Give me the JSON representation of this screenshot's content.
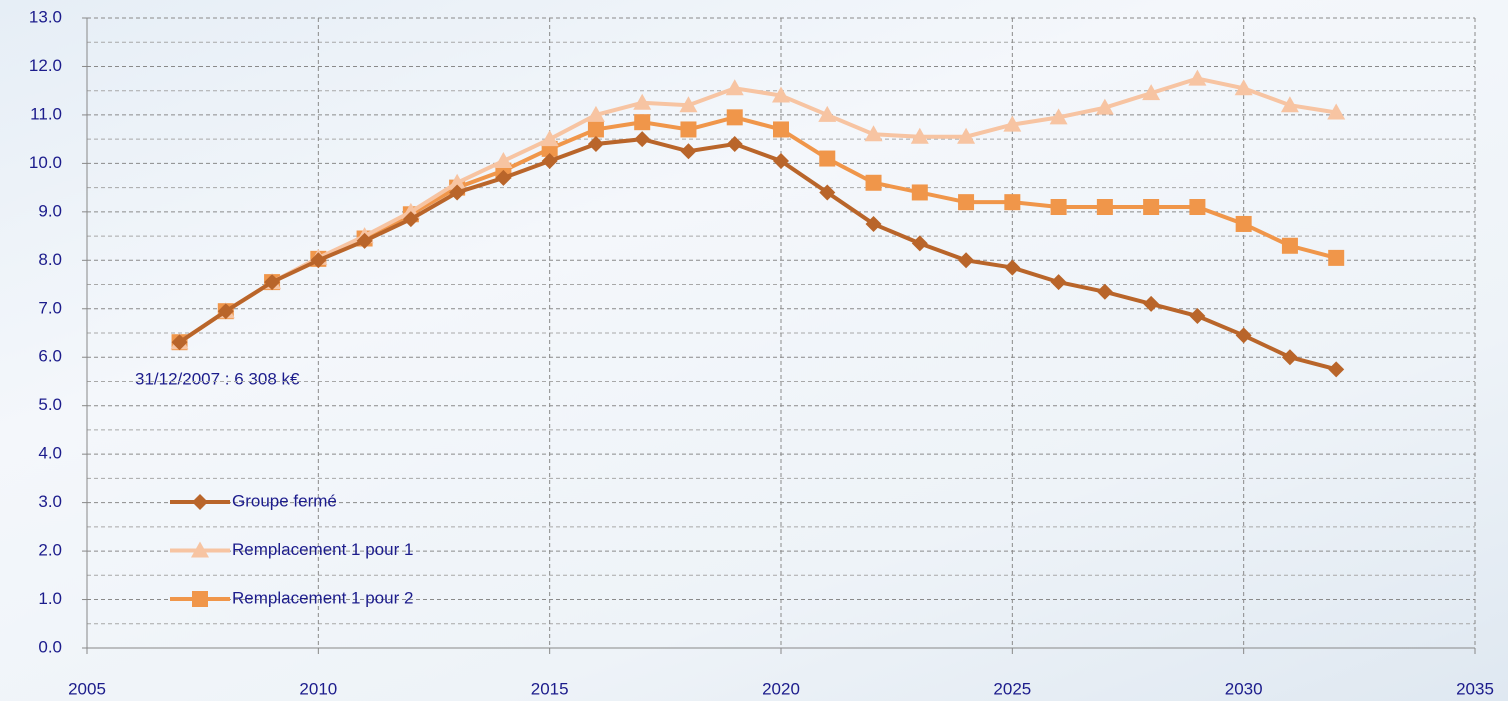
{
  "chart_data": {
    "type": "line",
    "annotation": "31/12/2007 : 6 308 k€",
    "x": [
      2007,
      2008,
      2009,
      2010,
      2011,
      2012,
      2013,
      2014,
      2015,
      2016,
      2017,
      2018,
      2019,
      2020,
      2021,
      2022,
      2023,
      2024,
      2025,
      2026,
      2027,
      2028,
      2029,
      2030,
      2031,
      2032
    ],
    "series": [
      {
        "name": "Groupe fermé",
        "color": "#b9652a",
        "marker": "diamond",
        "values": [
          6.31,
          6.95,
          7.55,
          8.0,
          8.4,
          8.85,
          9.4,
          9.7,
          10.05,
          10.4,
          10.5,
          10.25,
          10.4,
          10.05,
          9.4,
          8.75,
          8.35,
          8.0,
          7.85,
          7.55,
          7.35,
          7.1,
          6.85,
          6.45,
          6.0,
          5.75
        ]
      },
      {
        "name": "Remplacement 1 pour 1",
        "color": "#f7c4a2",
        "marker": "triangle",
        "values": [
          6.31,
          6.95,
          7.55,
          8.05,
          8.5,
          9.0,
          9.6,
          10.05,
          10.5,
          11.0,
          11.25,
          11.2,
          11.55,
          11.4,
          11.0,
          10.6,
          10.55,
          10.55,
          10.8,
          10.95,
          11.15,
          11.45,
          11.75,
          11.55,
          11.2,
          11.05
        ]
      },
      {
        "name": "Remplacement 1 pour 2",
        "color": "#f0964a",
        "marker": "square",
        "values": [
          6.31,
          6.95,
          7.55,
          8.03,
          8.45,
          8.95,
          9.5,
          9.85,
          10.3,
          10.7,
          10.85,
          10.7,
          10.95,
          10.7,
          10.1,
          9.6,
          9.4,
          9.2,
          9.2,
          9.1,
          9.1,
          9.1,
          9.1,
          8.75,
          8.3,
          8.05
        ]
      }
    ],
    "xlim": [
      2005,
      2035
    ],
    "xticks": [
      2005,
      2010,
      2015,
      2020,
      2025,
      2030,
      2035
    ],
    "ylim": [
      0,
      13
    ],
    "yticks": [
      {
        "value": 0,
        "label": "0.0"
      },
      {
        "value": 1,
        "label": "1.0"
      },
      {
        "value": 2,
        "label": "2.0"
      },
      {
        "value": 3,
        "label": "3.0"
      },
      {
        "value": 4,
        "label": "4.0"
      },
      {
        "value": 5,
        "label": "5.0"
      },
      {
        "value": 6,
        "label": "6.0"
      },
      {
        "value": 7,
        "label": "7.0"
      },
      {
        "value": 8,
        "label": "8.0"
      },
      {
        "value": 9,
        "label": "9.0"
      },
      {
        "value": 10,
        "label": "10.0"
      },
      {
        "value": 11,
        "label": "11.0"
      },
      {
        "value": 12,
        "label": "12.0"
      },
      {
        "value": 13,
        "label": "13.0"
      }
    ],
    "grid": true,
    "legend": "lower left"
  }
}
